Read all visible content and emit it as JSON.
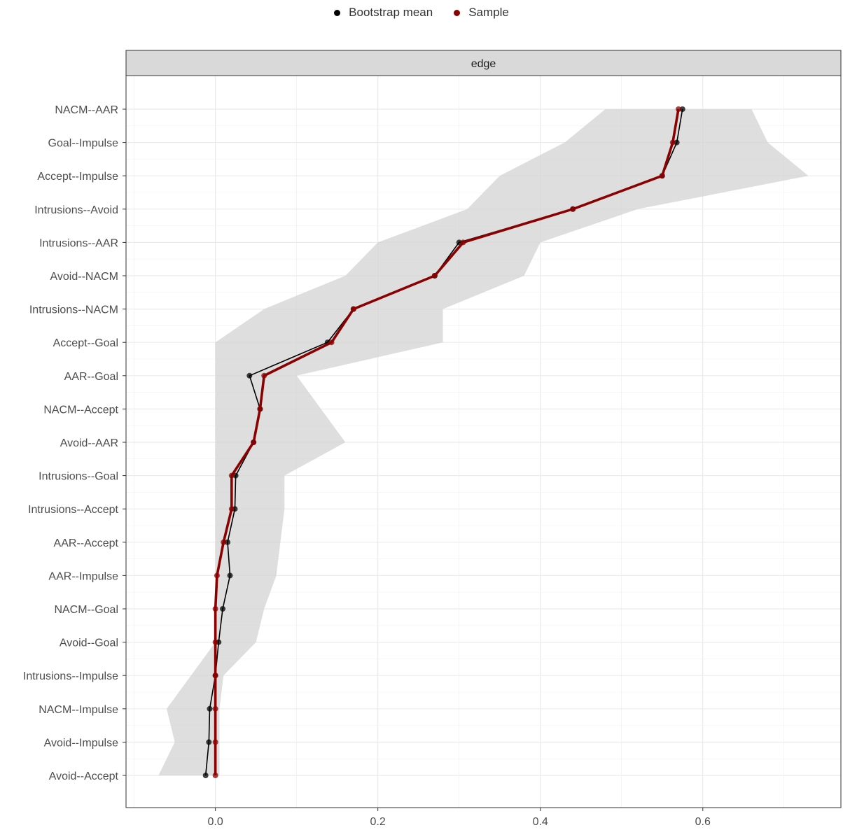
{
  "chart_data": {
    "type": "line",
    "facet_label": "edge",
    "legend": [
      {
        "name": "Bootstrap mean",
        "color": "#000000"
      },
      {
        "name": "Sample",
        "color": "#8b0000"
      }
    ],
    "legend_position": "top",
    "grid": true,
    "xlim": [
      -0.11,
      0.77
    ],
    "x_ticks": [
      0.0,
      0.2,
      0.4,
      0.6
    ],
    "x_tick_labels": [
      "0.0",
      "0.2",
      "0.4",
      "0.6"
    ],
    "categories": [
      "NACM--AAR",
      "Goal--Impulse",
      "Accept--Impulse",
      "Intrusions--Avoid",
      "Intrusions--AAR",
      "Avoid--NACM",
      "Intrusions--NACM",
      "Accept--Goal",
      "AAR--Goal",
      "NACM--Accept",
      "Avoid--AAR",
      "Intrusions--Goal",
      "Intrusions--Accept",
      "AAR--Accept",
      "AAR--Impulse",
      "NACM--Goal",
      "Avoid--Goal",
      "Intrusions--Impulse",
      "NACM--Impulse",
      "Avoid--Impulse",
      "Avoid--Accept"
    ],
    "series": [
      {
        "name": "Bootstrap mean",
        "color": "#000000",
        "values": [
          0.575,
          0.568,
          0.55,
          0.44,
          0.3,
          0.27,
          0.17,
          0.138,
          0.042,
          0.055,
          0.047,
          0.025,
          0.024,
          0.015,
          0.018,
          0.009,
          0.004,
          0.0,
          -0.007,
          -0.008,
          -0.012
        ]
      },
      {
        "name": "Sample",
        "color": "#8b0000",
        "values": [
          0.57,
          0.563,
          0.55,
          0.44,
          0.305,
          0.27,
          0.17,
          0.143,
          0.06,
          0.055,
          0.047,
          0.02,
          0.02,
          0.01,
          0.002,
          0.0,
          0.0,
          0.0,
          0.0,
          0.0,
          0.0
        ]
      }
    ],
    "ci_band": {
      "lower": [
        0.48,
        0.43,
        0.35,
        0.31,
        0.2,
        0.16,
        0.06,
        0.0,
        0.0,
        0.0,
        0.0,
        0.0,
        0.0,
        0.0,
        0.0,
        0.0,
        0.0,
        -0.03,
        -0.06,
        -0.05,
        -0.07
      ],
      "upper": [
        0.66,
        0.68,
        0.73,
        0.52,
        0.4,
        0.38,
        0.28,
        0.28,
        0.1,
        0.13,
        0.16,
        0.085,
        0.085,
        0.08,
        0.075,
        0.06,
        0.05,
        0.01,
        0.005,
        0.005,
        0.005
      ]
    }
  }
}
